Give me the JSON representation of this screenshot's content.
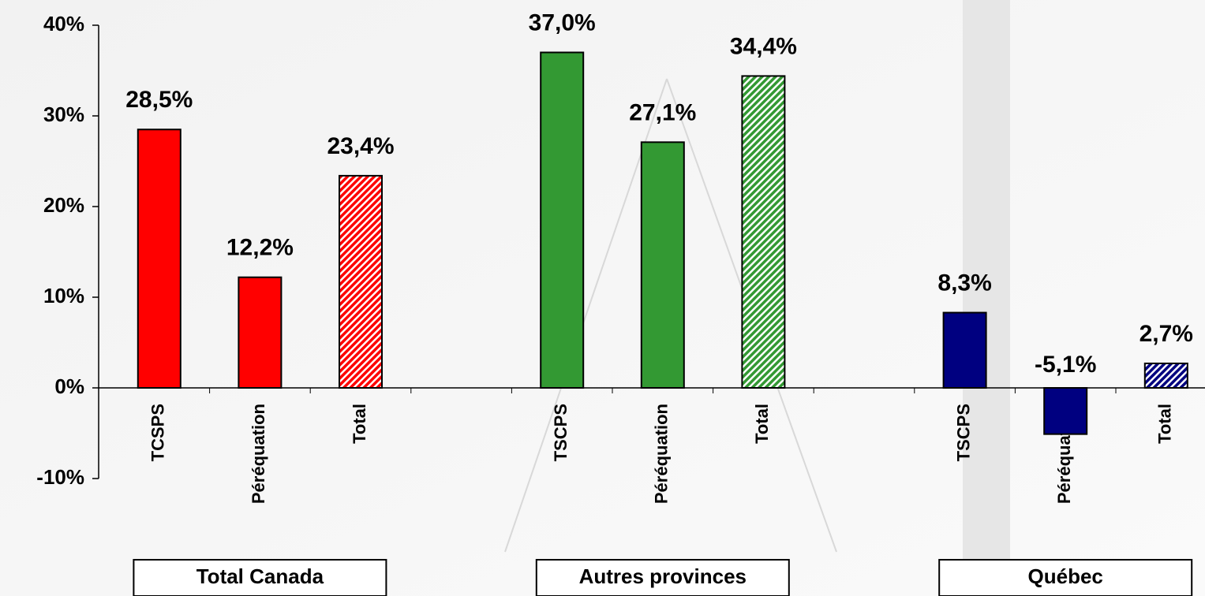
{
  "chart_data": {
    "type": "bar",
    "categories": [
      "TCSPS",
      "Péréquation",
      "Total",
      null,
      "TSCPS",
      "Péréquation",
      "Total",
      null,
      "TSCPS",
      "Péréquation",
      "Total"
    ],
    "values": [
      28.5,
      12.2,
      23.4,
      null,
      37.0,
      27.1,
      34.4,
      null,
      8.3,
      -5.1,
      2.7
    ],
    "value_labels": [
      "28,5%",
      "12,2%",
      "23,4%",
      null,
      "37,0%",
      "27,1%",
      "34,4%",
      null,
      "8,3%",
      "-5,1%",
      "2,7%"
    ],
    "colors": [
      "#ff0000",
      "#ff0000",
      "#ff0000",
      null,
      "#339933",
      "#339933",
      "#339933",
      null,
      "#000080",
      "#000080",
      "#000080"
    ],
    "hatched": [
      false,
      false,
      true,
      null,
      false,
      false,
      true,
      null,
      false,
      false,
      true
    ],
    "groups": [
      "Total Canada",
      "Autres provinces",
      "Québec"
    ],
    "ylim": [
      -10,
      40
    ],
    "yticks": [
      {
        "value": -10,
        "label": "-10%"
      },
      {
        "value": 0,
        "label": "0%"
      },
      {
        "value": 10,
        "label": "10%"
      },
      {
        "value": 20,
        "label": "20%"
      },
      {
        "value": 30,
        "label": "30%"
      },
      {
        "value": 40,
        "label": "40%"
      }
    ]
  }
}
